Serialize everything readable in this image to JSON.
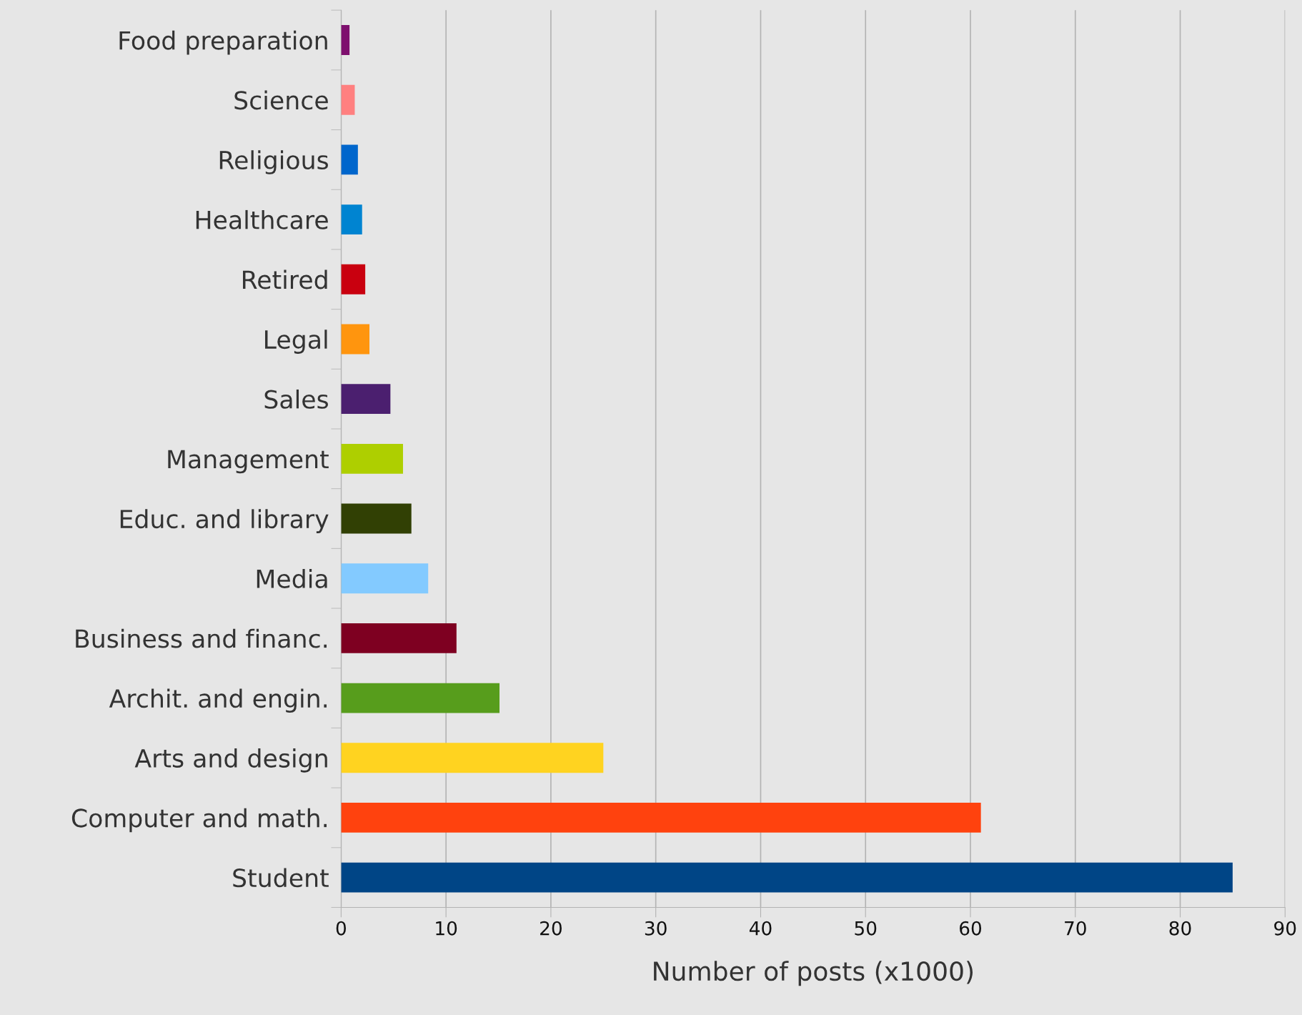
{
  "chart_data": {
    "type": "bar",
    "orientation": "horizontal",
    "xlabel": "Number of posts (x1000)",
    "categories": [
      "Food preparation",
      "Science",
      "Religious",
      "Healthcare",
      "Retired",
      "Legal",
      "Sales",
      "Management",
      "Educ. and library",
      "Media",
      "Business and financ.",
      "Archit. and engin.",
      "Arts and design",
      "Computer and math.",
      "Student"
    ],
    "values": [
      0.8,
      1.3,
      1.6,
      2.0,
      2.3,
      2.7,
      4.7,
      5.9,
      6.7,
      8.3,
      11.0,
      15.1,
      25.0,
      61.0,
      85.0
    ],
    "colors": [
      "#7e0f6e",
      "#ff8080",
      "#0066cc",
      "#0084d1",
      "#c9000f",
      "#ff950e",
      "#4b1f6f",
      "#aecf00",
      "#314004",
      "#83caff",
      "#7e0021",
      "#579d1c",
      "#ffd320",
      "#ff420e",
      "#004586"
    ],
    "xlim": [
      0,
      90
    ],
    "xticks": [
      0,
      10,
      20,
      30,
      40,
      50,
      60,
      70,
      80,
      90
    ],
    "grid": "x",
    "legend": false
  }
}
